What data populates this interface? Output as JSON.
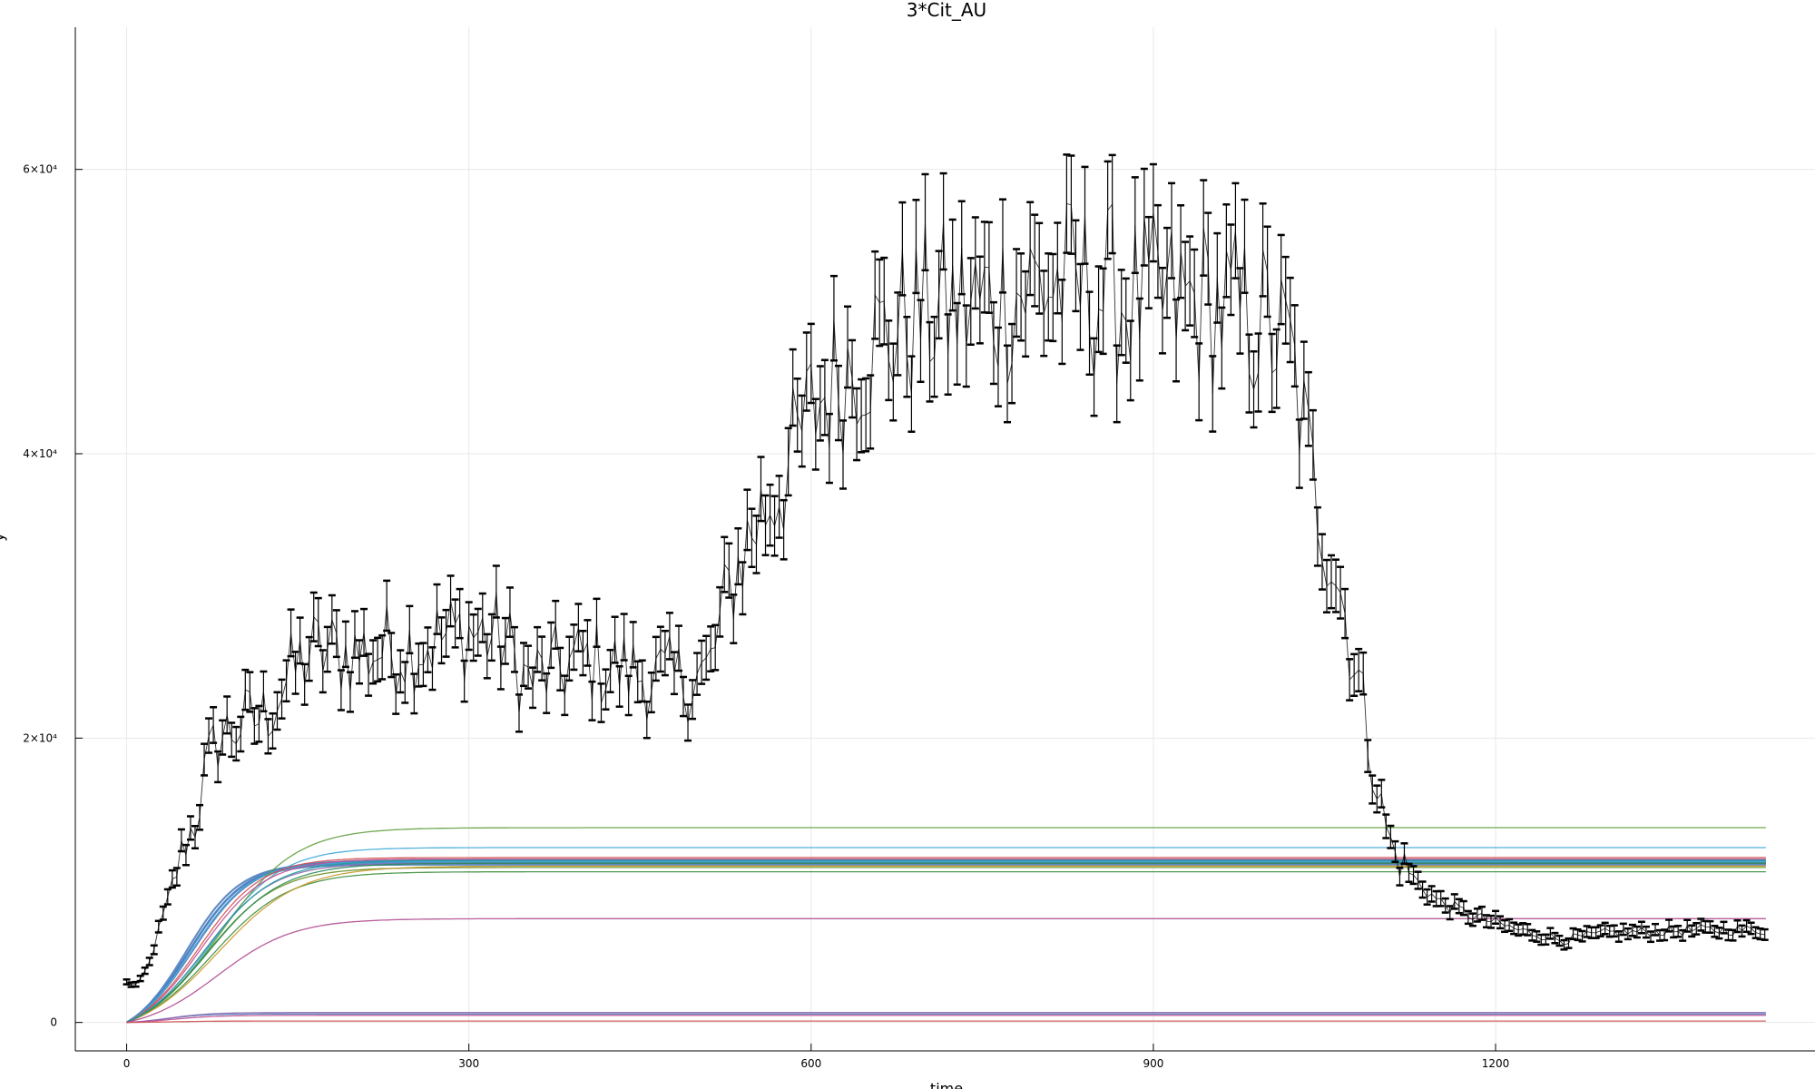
{
  "chart_data": {
    "type": "line",
    "title": "3*Cit_AU",
    "xlabel": "time",
    "ylabel": "y",
    "xlim": [
      -45,
      1480
    ],
    "ylim": [
      -2000,
      70000
    ],
    "grid": true,
    "legend": "none",
    "xticks": [
      0,
      300,
      600,
      900,
      1200
    ],
    "xtick_labels": [
      "0",
      "300",
      "600",
      "900",
      "1200"
    ],
    "yticks": [
      0,
      20000,
      40000,
      60000
    ],
    "ytick_labels": [
      "0",
      "2×10⁴",
      "4×10⁴",
      "6×10⁴"
    ],
    "observed": {
      "color": "#000000",
      "x_start": 0,
      "x_step": 4,
      "anchors": [
        [
          0,
          2800
        ],
        [
          10,
          2600
        ],
        [
          20,
          4200
        ],
        [
          30,
          7000
        ],
        [
          40,
          9500
        ],
        [
          50,
          12500
        ],
        [
          60,
          14000
        ],
        [
          70,
          18000
        ],
        [
          80,
          20000
        ],
        [
          100,
          21000
        ],
        [
          120,
          21500
        ],
        [
          140,
          24000
        ],
        [
          160,
          26000
        ],
        [
          200,
          26000
        ],
        [
          250,
          26500
        ],
        [
          300,
          27500
        ],
        [
          330,
          27000
        ],
        [
          350,
          24000
        ],
        [
          400,
          25500
        ],
        [
          450,
          24500
        ],
        [
          480,
          24000
        ],
        [
          510,
          24500
        ],
        [
          530,
          31000
        ],
        [
          550,
          35000
        ],
        [
          580,
          39000
        ],
        [
          600,
          43000
        ],
        [
          640,
          47000
        ],
        [
          700,
          50000
        ],
        [
          750,
          50500
        ],
        [
          800,
          52000
        ],
        [
          850,
          51500
        ],
        [
          900,
          50500
        ],
        [
          950,
          50500
        ],
        [
          1000,
          49000
        ],
        [
          1020,
          47000
        ],
        [
          1040,
          38000
        ],
        [
          1060,
          32000
        ],
        [
          1080,
          24000
        ],
        [
          1100,
          15000
        ],
        [
          1110,
          12000
        ],
        [
          1130,
          10000
        ],
        [
          1150,
          8500
        ],
        [
          1180,
          7500
        ],
        [
          1220,
          6500
        ],
        [
          1260,
          5800
        ],
        [
          1300,
          6300
        ],
        [
          1340,
          6400
        ],
        [
          1380,
          6500
        ],
        [
          1437,
          6500
        ]
      ],
      "noise_pct": 0.13,
      "errorbar": 0.06
    },
    "series": [
      {
        "color": "#4F7FBF",
        "plateau": 11300,
        "k": 0.04,
        "t0": 55
      },
      {
        "color": "#4F7FBF",
        "plateau": 11200,
        "k": 0.042,
        "t0": 52
      },
      {
        "color": "#4F7FBF",
        "plateau": 11400,
        "k": 0.038,
        "t0": 58
      },
      {
        "color": "#4F7FBF",
        "plateau": 11100,
        "k": 0.041,
        "t0": 54
      },
      {
        "color": "#3FA9D8",
        "plateau": 11300,
        "k": 0.039,
        "t0": 57
      },
      {
        "color": "#3FA9D8",
        "plateau": 12300,
        "k": 0.033,
        "t0": 75
      },
      {
        "color": "#5E9E3E",
        "plateau": 13700,
        "k": 0.03,
        "t0": 82
      },
      {
        "color": "#3F8F3F",
        "plateau": 10600,
        "k": 0.03,
        "t0": 75
      },
      {
        "color": "#6B8E23",
        "plateau": 10900,
        "k": 0.032,
        "t0": 70
      },
      {
        "color": "#C89A2E",
        "plateau": 11000,
        "k": 0.028,
        "t0": 80
      },
      {
        "color": "#8E6BB0",
        "plateau": 11200,
        "k": 0.034,
        "t0": 68
      },
      {
        "color": "#C05090",
        "plateau": 11500,
        "k": 0.035,
        "t0": 65
      },
      {
        "color": "#D05050",
        "plateau": 11600,
        "k": 0.036,
        "t0": 63
      },
      {
        "color": "#2E8B57",
        "plateau": 11200,
        "k": 0.031,
        "t0": 72
      },
      {
        "color": "#1F9E9E",
        "plateau": 11400,
        "k": 0.033,
        "t0": 69
      },
      {
        "color": "#B04A8F",
        "plateau": 7300,
        "k": 0.03,
        "t0": 80
      },
      {
        "color": "#4F7FBF",
        "plateau": 600,
        "k": 0.06,
        "t0": 35
      },
      {
        "color": "#8E6BB0",
        "plateau": 700,
        "k": 0.055,
        "t0": 38
      },
      {
        "color": "#C05090",
        "plateau": 500,
        "k": 0.05,
        "t0": 40
      },
      {
        "color": "#D05050",
        "plateau": 100,
        "k": 0.05,
        "t0": 40
      }
    ],
    "series_x_end": 1437
  }
}
